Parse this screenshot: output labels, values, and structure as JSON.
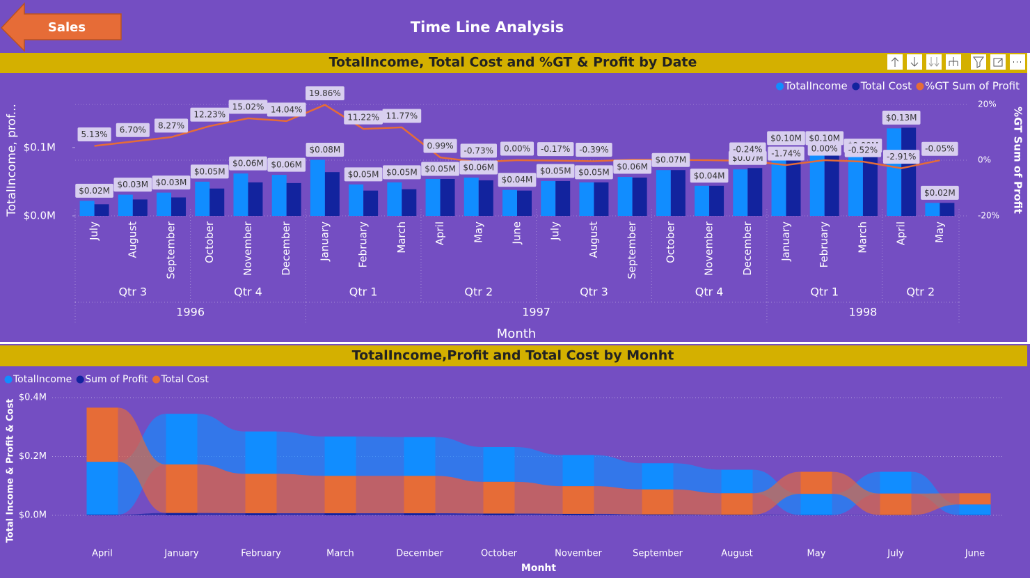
{
  "header": {
    "button": "Sales",
    "title": "Time Line Analysis"
  },
  "chart_data": [
    {
      "type": "combo",
      "title": "TotalIncome, Total Cost and %GT & Profit by Date",
      "x_label": "Month",
      "y_label": "TotalIncome, prof...",
      "y2_label": "%GT Sum of Profit",
      "categories": [
        "July",
        "August",
        "September",
        "October",
        "November",
        "December",
        "January",
        "February",
        "March",
        "April",
        "May",
        "June",
        "July",
        "August",
        "September",
        "October",
        "November",
        "December",
        "January",
        "February",
        "March",
        "April",
        "May"
      ],
      "quarters": [
        "Qtr 3",
        "Qtr 3",
        "Qtr 3",
        "Qtr 4",
        "Qtr 4",
        "Qtr 4",
        "Qtr 1",
        "Qtr 1",
        "Qtr 1",
        "Qtr 2",
        "Qtr 2",
        "Qtr 2",
        "Qtr 3",
        "Qtr 3",
        "Qtr 3",
        "Qtr 4",
        "Qtr 4",
        "Qtr 4",
        "Qtr 1",
        "Qtr 1",
        "Qtr 1",
        "Qtr 2",
        "Qtr 2"
      ],
      "years": [
        "1996",
        "1996",
        "1996",
        "1996",
        "1996",
        "1996",
        "1997",
        "1997",
        "1997",
        "1997",
        "1997",
        "1997",
        "1997",
        "1997",
        "1997",
        "1997",
        "1997",
        "1997",
        "1998",
        "1998",
        "1998",
        "1998",
        "1998"
      ],
      "series": [
        {
          "name": "TotalIncome",
          "color": "#118DFF",
          "values": [
            22000,
            31000,
            34000,
            50000,
            62000,
            60000,
            82000,
            46000,
            49000,
            54000,
            56000,
            38000,
            51000,
            49000,
            57000,
            67000,
            44000,
            68000,
            97000,
            99000,
            88000,
            128000,
            19000
          ],
          "value_labels": [
            "$0.02M",
            "$0.03M",
            "$0.03M",
            "$0.05M",
            "$0.06M",
            "$0.06M",
            "$0.08M",
            "$0.05M",
            "$0.05M",
            "$0.05M",
            "$0.06M",
            "$0.04M",
            "$0.05M",
            "$0.05M",
            "$0.06M",
            "$0.07M",
            "$0.04M",
            "$0.07M",
            "$0.10M",
            "$0.10M",
            "$0.09M",
            "$0.13M",
            "$0.02M"
          ]
        },
        {
          "name": "Total Cost",
          "color": "#12239E",
          "values": [
            17000,
            24000,
            27000,
            40000,
            49000,
            48000,
            64000,
            37000,
            39000,
            54000,
            52000,
            37000,
            51000,
            49000,
            56000,
            67000,
            44000,
            70000,
            99000,
            99000,
            87000,
            129000,
            19000
          ]
        },
        {
          "name": "%GT Sum of Profit",
          "color": "#E66C37",
          "type": "line",
          "axis": "y2",
          "values": [
            5.13,
            6.7,
            8.27,
            12.23,
            15.02,
            14.04,
            19.86,
            11.22,
            11.77,
            0.99,
            -0.73,
            0.0,
            -0.17,
            -0.39,
            0.2,
            0.1,
            0.0,
            -0.24,
            -1.74,
            0.0,
            -0.52,
            -2.91,
            -0.05
          ],
          "value_labels": [
            "5.13%",
            "6.70%",
            "8.27%",
            "12.23%",
            "15.02%",
            "14.04%",
            "19.86%",
            "11.22%",
            "11.77%",
            "0.99%",
            "-0.73%",
            "0.00%",
            "-0.17%",
            "-0.39%",
            null,
            null,
            null,
            "-0.24%",
            "-1.74%",
            "0.00%",
            "-0.52%",
            "-2.91%",
            "-0.05%"
          ]
        }
      ],
      "ylim": [
        0,
        163000
      ],
      "yticks": [
        {
          "value": 0,
          "label": "$0.0M"
        },
        {
          "value": 100000,
          "label": "$0.1M"
        }
      ],
      "y2lim": [
        -20,
        20
      ],
      "y2ticks": [
        {
          "value": -20,
          "label": "-20%"
        },
        {
          "value": 0,
          "label": "0%"
        },
        {
          "value": 20,
          "label": "20%"
        }
      ],
      "legend": "top-right"
    },
    {
      "type": "ribbon",
      "title": "TotalIncome,Profit and Total Cost by Monht",
      "x_label": "Monht",
      "y_label": "Total Income & Profit & Cost",
      "categories": [
        "April",
        "January",
        "February",
        "March",
        "December",
        "October",
        "November",
        "September",
        "August",
        "May",
        "July",
        "June"
      ],
      "series": [
        {
          "name": "TotalIncome",
          "color": "#118DFF",
          "values": [
            180000,
            172000,
            144000,
            134000,
            132000,
            118000,
            106000,
            89000,
            80000,
            72000,
            74000,
            36000
          ]
        },
        {
          "name": "Sum of Profit",
          "color": "#12239E",
          "values": [
            2000,
            8000,
            7000,
            7000,
            7000,
            6000,
            5000,
            3000,
            2000,
            1000,
            1000,
            1000
          ]
        },
        {
          "name": "Total Cost",
          "color": "#E66C37",
          "values": [
            184000,
            165000,
            134000,
            127000,
            127000,
            108000,
            94000,
            85000,
            73000,
            75000,
            73000,
            38000
          ]
        }
      ],
      "ylim": [
        0,
        400000
      ],
      "yticks": [
        {
          "value": 0,
          "label": "$0.0M"
        },
        {
          "value": 200000,
          "label": "$0.2M"
        },
        {
          "value": 400000,
          "label": "$0.4M"
        }
      ],
      "grid": true,
      "legend": "top-left"
    }
  ]
}
